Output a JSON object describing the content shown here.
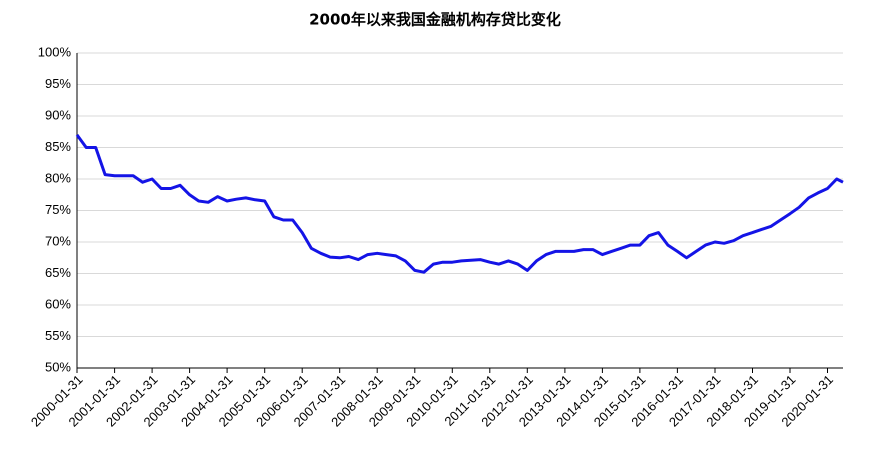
{
  "chart_data": {
    "type": "line",
    "title": "2000年以来我国金融机构存贷比变化",
    "color": "#1414e6",
    "grid": true,
    "x": [
      "2000-01-31",
      "2000-04-30",
      "2000-07-31",
      "2000-10-31",
      "2001-01-31",
      "2001-04-30",
      "2001-07-31",
      "2001-10-31",
      "2002-01-31",
      "2002-04-30",
      "2002-07-31",
      "2002-10-31",
      "2003-01-31",
      "2003-04-30",
      "2003-07-31",
      "2003-10-31",
      "2004-01-31",
      "2004-04-30",
      "2004-07-31",
      "2004-10-31",
      "2005-01-31",
      "2005-04-30",
      "2005-07-31",
      "2005-10-31",
      "2006-01-31",
      "2006-04-30",
      "2006-07-31",
      "2006-10-31",
      "2007-01-31",
      "2007-04-30",
      "2007-07-31",
      "2007-10-31",
      "2008-01-31",
      "2008-04-30",
      "2008-07-31",
      "2008-10-31",
      "2009-01-31",
      "2009-04-30",
      "2009-07-31",
      "2009-10-31",
      "2010-01-31",
      "2010-04-30",
      "2010-07-31",
      "2010-10-31",
      "2011-01-31",
      "2011-04-30",
      "2011-07-31",
      "2011-10-31",
      "2012-01-31",
      "2012-04-30",
      "2012-07-31",
      "2012-10-31",
      "2013-01-31",
      "2013-04-30",
      "2013-07-31",
      "2013-10-31",
      "2014-01-31",
      "2014-04-30",
      "2014-07-31",
      "2014-10-31",
      "2015-01-31",
      "2015-04-30",
      "2015-07-31",
      "2015-10-31",
      "2016-01-31",
      "2016-04-30",
      "2016-07-31",
      "2016-10-31",
      "2017-01-31",
      "2017-04-30",
      "2017-07-31",
      "2017-10-31",
      "2018-01-31",
      "2018-04-30",
      "2018-07-31",
      "2018-10-31",
      "2019-01-31",
      "2019-04-30",
      "2019-07-31",
      "2019-10-31",
      "2020-01-31",
      "2020-04-30",
      "2020-06-30"
    ],
    "values": [
      87,
      85,
      85,
      80.7,
      80.5,
      80.5,
      80.5,
      79.5,
      80,
      78.5,
      78.5,
      79,
      77.5,
      76.5,
      76.3,
      77.2,
      76.5,
      76.8,
      77,
      76.7,
      76.5,
      74,
      73.5,
      73.5,
      71.5,
      69,
      68.2,
      67.6,
      67.5,
      67.7,
      67.2,
      68,
      68.2,
      68,
      67.8,
      67,
      65.5,
      65.2,
      66.5,
      66.8,
      66.8,
      67,
      67.1,
      67.2,
      66.8,
      66.5,
      67,
      66.5,
      65.5,
      67,
      68,
      68.5,
      68.5,
      68.5,
      68.8,
      68.8,
      68,
      68.5,
      69,
      69.5,
      69.5,
      71,
      71.5,
      69.5,
      68.5,
      67.5,
      68.5,
      69.5,
      70,
      69.8,
      70.2,
      71,
      71.5,
      72,
      72.5,
      73.5,
      74.5,
      75.5,
      77,
      77.8,
      78.5,
      80,
      79.5
    ],
    "xlim": [
      "2000-01-31",
      "2020-06-30"
    ],
    "xticks": [
      "2000-01-31",
      "2001-01-31",
      "2002-01-31",
      "2003-01-31",
      "2004-01-31",
      "2005-01-31",
      "2006-01-31",
      "2007-01-31",
      "2008-01-31",
      "2009-01-31",
      "2010-01-31",
      "2011-01-31",
      "2012-01-31",
      "2013-01-31",
      "2014-01-31",
      "2015-01-31",
      "2016-01-31",
      "2017-01-31",
      "2018-01-31",
      "2019-01-31",
      "2020-01-31"
    ],
    "ylim": [
      50,
      100
    ],
    "yticks": [
      {
        "value": 50,
        "label": "50%"
      },
      {
        "value": 55,
        "label": "55%"
      },
      {
        "value": 60,
        "label": "60%"
      },
      {
        "value": 65,
        "label": "65%"
      },
      {
        "value": 70,
        "label": "70%"
      },
      {
        "value": 75,
        "label": "75%"
      },
      {
        "value": 80,
        "label": "80%"
      },
      {
        "value": 85,
        "label": "85%"
      },
      {
        "value": 90,
        "label": "90%"
      },
      {
        "value": 95,
        "label": "95%"
      },
      {
        "value": 100,
        "label": "100%"
      }
    ]
  }
}
